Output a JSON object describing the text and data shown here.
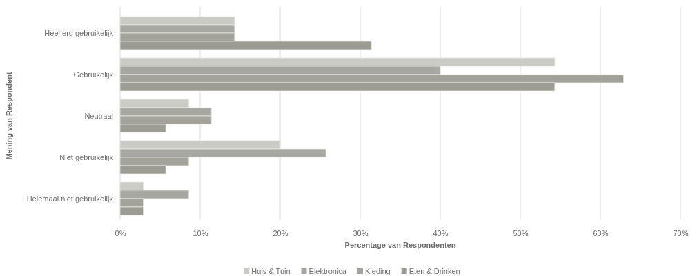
{
  "chart_data": {
    "type": "bar",
    "orientation": "horizontal",
    "xlabel": "Percentage van Respondenten",
    "ylabel": "Mening van Respondent",
    "categories": [
      "Heel erg gebruikelijk",
      "Gebruikelijk",
      "Neutraal",
      "Niet gebruikelijk",
      "Helemaal niet gebruikelijk"
    ],
    "series": [
      {
        "name": "Huis & Tuin",
        "color": "#cbcbc6",
        "values": [
          14.3,
          54.3,
          8.6,
          20.0,
          2.9
        ]
      },
      {
        "name": "Elektronica",
        "color": "#a8a8a2",
        "values": [
          14.3,
          40.0,
          11.4,
          25.7,
          8.6
        ]
      },
      {
        "name": "Kleding",
        "color": "#a3a39c",
        "values": [
          14.3,
          62.9,
          11.4,
          8.6,
          2.9
        ]
      },
      {
        "name": "Eten & Drinken",
        "color": "#9c9c94",
        "values": [
          31.4,
          54.3,
          5.7,
          5.7,
          2.9
        ]
      }
    ],
    "xlim": [
      0,
      70
    ],
    "xticks": [
      {
        "value": 0,
        "label": "0%"
      },
      {
        "value": 10,
        "label": "10%"
      },
      {
        "value": 20,
        "label": "20%"
      },
      {
        "value": 30,
        "label": "30%"
      },
      {
        "value": 40,
        "label": "40%"
      },
      {
        "value": 50,
        "label": "50%"
      },
      {
        "value": 60,
        "label": "60%"
      },
      {
        "value": 70,
        "label": "70%"
      }
    ],
    "grid": "x",
    "legend": "bottom"
  }
}
